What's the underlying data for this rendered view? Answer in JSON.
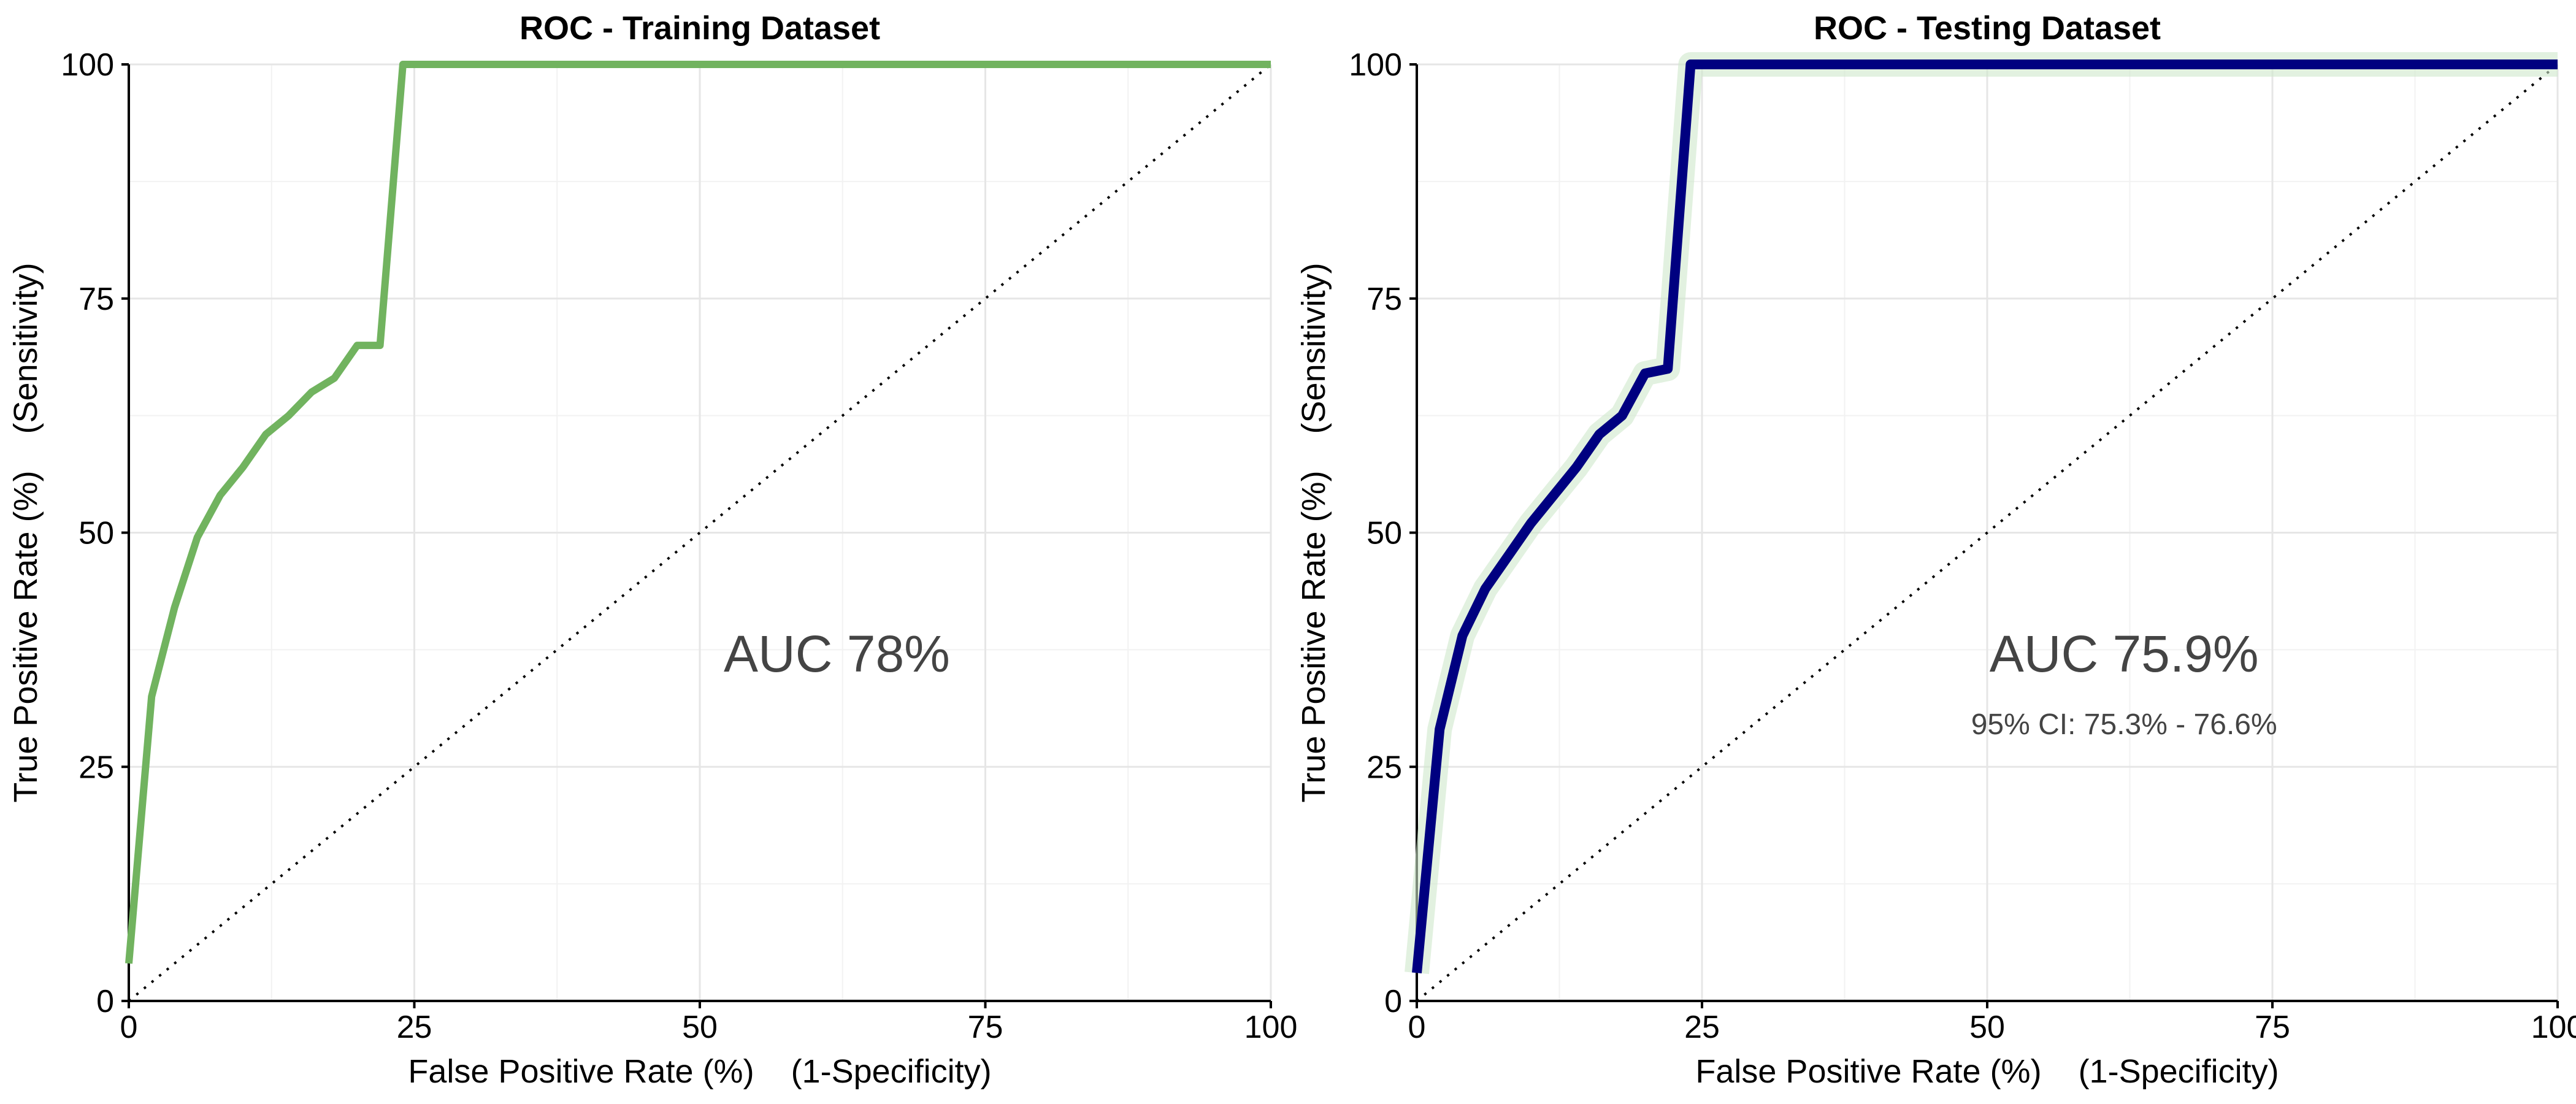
{
  "chart_data": [
    {
      "type": "line",
      "title": "ROC - Training Dataset",
      "xlabel": "False Positive Rate (%)    (1-Specificity)",
      "ylabel": "True Positive Rate (%)    (Sensitivity)",
      "xlim": [
        0,
        100
      ],
      "ylim": [
        0,
        100
      ],
      "x_ticks": [
        "0",
        "25",
        "50",
        "75",
        "100"
      ],
      "y_ticks": [
        "0",
        "25",
        "50",
        "75",
        "100"
      ],
      "grid": true,
      "series": [
        {
          "color": "#71b35f",
          "x": [
            0,
            2,
            4,
            6,
            8,
            10,
            12,
            14,
            16,
            18,
            20,
            22,
            24,
            26,
            50,
            75,
            100
          ],
          "y": [
            4,
            32.5,
            42,
            49.5,
            54,
            57,
            60.5,
            62.5,
            65,
            66.5,
            70,
            70,
            100,
            100,
            100,
            100,
            100
          ]
        }
      ],
      "reference_line": {
        "x": [
          0,
          100
        ],
        "y": [
          0,
          100
        ],
        "style": "dotted"
      },
      "annotation": {
        "text": "AUC 78%",
        "x": 62,
        "y": 37
      },
      "ci_text": ""
    },
    {
      "type": "line",
      "title": "ROC - Testing Dataset",
      "xlabel": "False Positive Rate (%)    (1-Specificity)",
      "ylabel": "True Positive Rate (%)    (Sensitivity)",
      "xlim": [
        0,
        100
      ],
      "ylim": [
        0,
        100
      ],
      "x_ticks": [
        "0",
        "25",
        "50",
        "75",
        "100"
      ],
      "y_ticks": [
        "0",
        "25",
        "50",
        "75",
        "100"
      ],
      "grid": true,
      "series": [
        {
          "color": "#000080",
          "x": [
            0,
            2,
            4,
            6,
            8,
            10,
            12,
            14,
            16,
            18,
            20,
            22,
            24,
            26,
            50,
            75,
            100
          ],
          "y": [
            3,
            29,
            39,
            44,
            47.5,
            51,
            54,
            57,
            60.5,
            62.5,
            67,
            67.5,
            100,
            100,
            100,
            100,
            100
          ]
        }
      ],
      "reference_line": {
        "x": [
          0,
          100
        ],
        "y": [
          0,
          100
        ],
        "style": "dotted"
      },
      "annotation": {
        "text": "AUC 75.9%",
        "x": 62,
        "y": 37
      },
      "ci_text": "95% CI: 75.3% - 76.6%"
    }
  ]
}
